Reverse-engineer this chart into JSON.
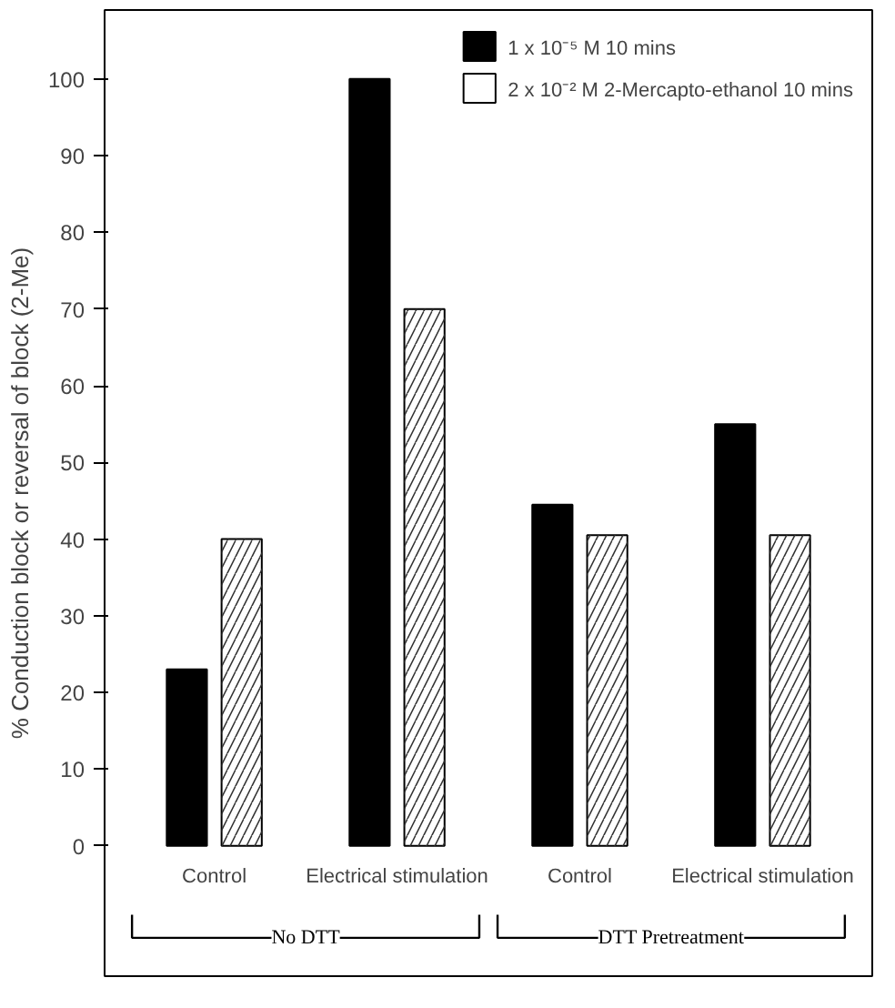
{
  "chart_data": {
    "type": "bar",
    "ylabel": "% Conduction block or reversal of block (2-Me)",
    "categories": [
      "Control",
      "Electrical stimulation",
      "Control",
      "Electrical stimulation"
    ],
    "series": [
      {
        "name": "1 x 10⁻⁵ M 10 mins",
        "color": "#000000",
        "values": [
          23,
          100,
          44.5,
          55
        ]
      },
      {
        "name": "2 x 10⁻² M 2-Mercapto-ethanol 10 mins",
        "color": "#ffffff",
        "values": [
          40,
          70,
          40.5,
          40.5
        ]
      }
    ],
    "annotations": [
      "No DTT",
      "DTT Pretreatment"
    ],
    "ylim": [
      -17,
      109
    ],
    "yticks": [
      0,
      10,
      20,
      30,
      40,
      50,
      60,
      70,
      80,
      90,
      100
    ],
    "grid": false,
    "legend": "top right"
  }
}
